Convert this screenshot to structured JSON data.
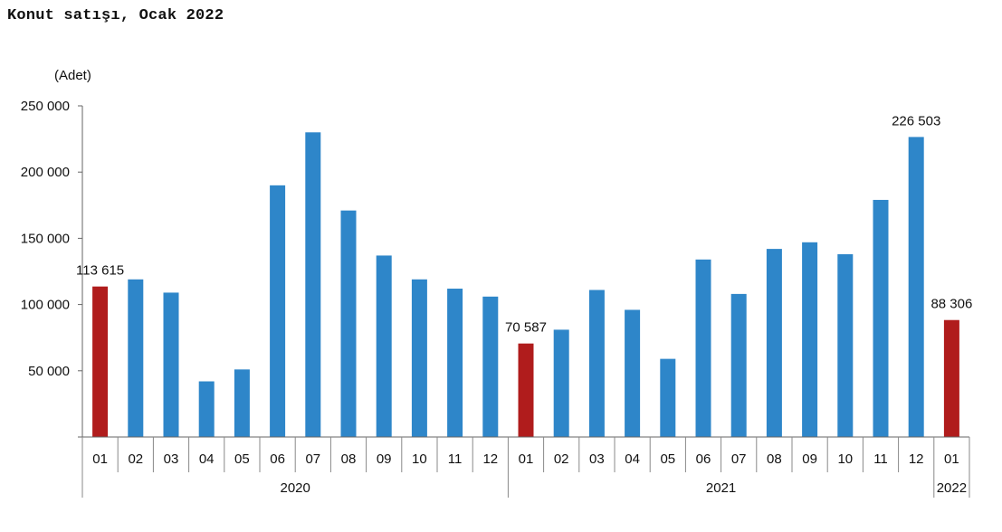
{
  "title": "Konut satışı, Ocak 2022",
  "chart_data": {
    "type": "bar",
    "unit_label": "(Adet)",
    "ylim": [
      0,
      250000
    ],
    "yticks": [
      {
        "value": 50000,
        "label": "50 000"
      },
      {
        "value": 100000,
        "label": "100 000"
      },
      {
        "value": 150000,
        "label": "150 000"
      },
      {
        "value": 200000,
        "label": "200 000"
      },
      {
        "value": 250000,
        "label": "250 000"
      }
    ],
    "grid": false,
    "colors": {
      "default": "#2e86c9",
      "highlight": "#b01c1c"
    },
    "bars": [
      {
        "category": "01",
        "year": "2020",
        "value": 113615,
        "highlight": true,
        "label": "113 615"
      },
      {
        "category": "02",
        "year": "2020",
        "value": 119000,
        "highlight": false,
        "label": ""
      },
      {
        "category": "03",
        "year": "2020",
        "value": 109000,
        "highlight": false,
        "label": ""
      },
      {
        "category": "04",
        "year": "2020",
        "value": 42000,
        "highlight": false,
        "label": ""
      },
      {
        "category": "05",
        "year": "2020",
        "value": 51000,
        "highlight": false,
        "label": ""
      },
      {
        "category": "06",
        "year": "2020",
        "value": 190000,
        "highlight": false,
        "label": ""
      },
      {
        "category": "07",
        "year": "2020",
        "value": 230000,
        "highlight": false,
        "label": ""
      },
      {
        "category": "08",
        "year": "2020",
        "value": 171000,
        "highlight": false,
        "label": ""
      },
      {
        "category": "09",
        "year": "2020",
        "value": 137000,
        "highlight": false,
        "label": ""
      },
      {
        "category": "10",
        "year": "2020",
        "value": 119000,
        "highlight": false,
        "label": ""
      },
      {
        "category": "11",
        "year": "2020",
        "value": 112000,
        "highlight": false,
        "label": ""
      },
      {
        "category": "12",
        "year": "2020",
        "value": 106000,
        "highlight": false,
        "label": ""
      },
      {
        "category": "01",
        "year": "2021",
        "value": 70587,
        "highlight": true,
        "label": "70 587"
      },
      {
        "category": "02",
        "year": "2021",
        "value": 81000,
        "highlight": false,
        "label": ""
      },
      {
        "category": "03",
        "year": "2021",
        "value": 111000,
        "highlight": false,
        "label": ""
      },
      {
        "category": "04",
        "year": "2021",
        "value": 96000,
        "highlight": false,
        "label": ""
      },
      {
        "category": "05",
        "year": "2021",
        "value": 59000,
        "highlight": false,
        "label": ""
      },
      {
        "category": "06",
        "year": "2021",
        "value": 134000,
        "highlight": false,
        "label": ""
      },
      {
        "category": "07",
        "year": "2021",
        "value": 108000,
        "highlight": false,
        "label": ""
      },
      {
        "category": "08",
        "year": "2021",
        "value": 142000,
        "highlight": false,
        "label": ""
      },
      {
        "category": "09",
        "year": "2021",
        "value": 147000,
        "highlight": false,
        "label": ""
      },
      {
        "category": "10",
        "year": "2021",
        "value": 138000,
        "highlight": false,
        "label": ""
      },
      {
        "category": "11",
        "year": "2021",
        "value": 179000,
        "highlight": false,
        "label": ""
      },
      {
        "category": "12",
        "year": "2021",
        "value": 226503,
        "highlight": false,
        "label": "226 503"
      },
      {
        "category": "01",
        "year": "2022",
        "value": 88306,
        "highlight": true,
        "label": "88 306"
      }
    ],
    "year_groups": [
      {
        "label": "2020",
        "count": 12
      },
      {
        "label": "2021",
        "count": 12
      },
      {
        "label": "2022",
        "count": 1
      }
    ]
  }
}
